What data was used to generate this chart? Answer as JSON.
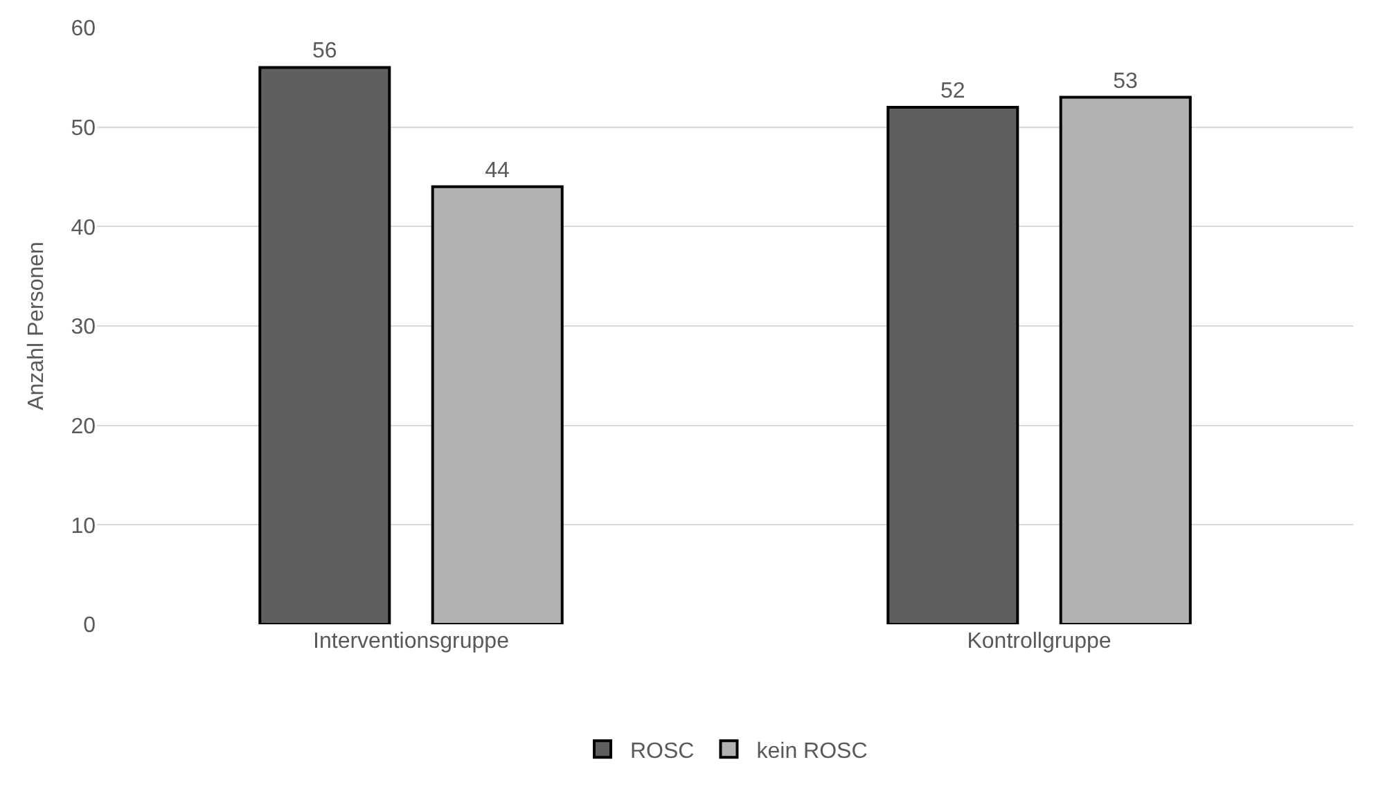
{
  "chart_data": {
    "type": "bar",
    "ylabel": "Anzahl Personen",
    "categories": [
      "Interventionsgruppe",
      "Kontrollgruppe"
    ],
    "series": [
      {
        "name": "ROSC",
        "color": "#5f5f5f",
        "values": [
          56,
          52
        ]
      },
      {
        "name": "kein ROSC",
        "color": "#b2b2b2",
        "values": [
          44,
          53
        ]
      }
    ],
    "ylim": [
      0,
      60
    ],
    "yticks": [
      0,
      10,
      20,
      30,
      40,
      50,
      60
    ],
    "grid": "y",
    "legend": "bottom",
    "data_labels": true
  }
}
